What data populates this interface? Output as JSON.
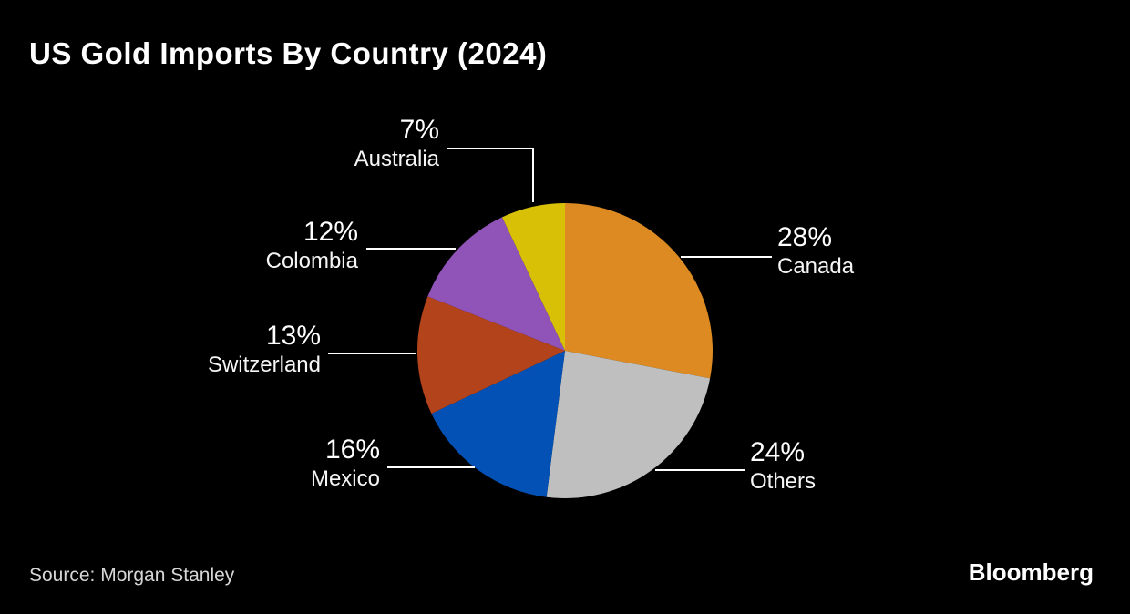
{
  "title": "US Gold Imports By Country (2024)",
  "source": "Source: Morgan Stanley",
  "brand": "Bloomberg",
  "chart_data": {
    "type": "pie",
    "title": "US Gold Imports By Country (2024)",
    "units": "%",
    "start_angle_deg": 0,
    "direction": "clockwise",
    "legend_position": "callouts",
    "background_color": "#000000",
    "slices": [
      {
        "label": "Canada",
        "value": 28,
        "pct_label": "28%",
        "color": "#DD8A23"
      },
      {
        "label": "Others",
        "value": 24,
        "pct_label": "24%",
        "color": "#BFBFBF"
      },
      {
        "label": "Mexico",
        "value": 16,
        "pct_label": "16%",
        "color": "#0351B5"
      },
      {
        "label": "Switzerland",
        "value": 13,
        "pct_label": "13%",
        "color": "#B2431A"
      },
      {
        "label": "Colombia",
        "value": 12,
        "pct_label": "12%",
        "color": "#9053B8"
      },
      {
        "label": "Australia",
        "value": 7,
        "pct_label": "7%",
        "color": "#D8C007"
      }
    ]
  }
}
